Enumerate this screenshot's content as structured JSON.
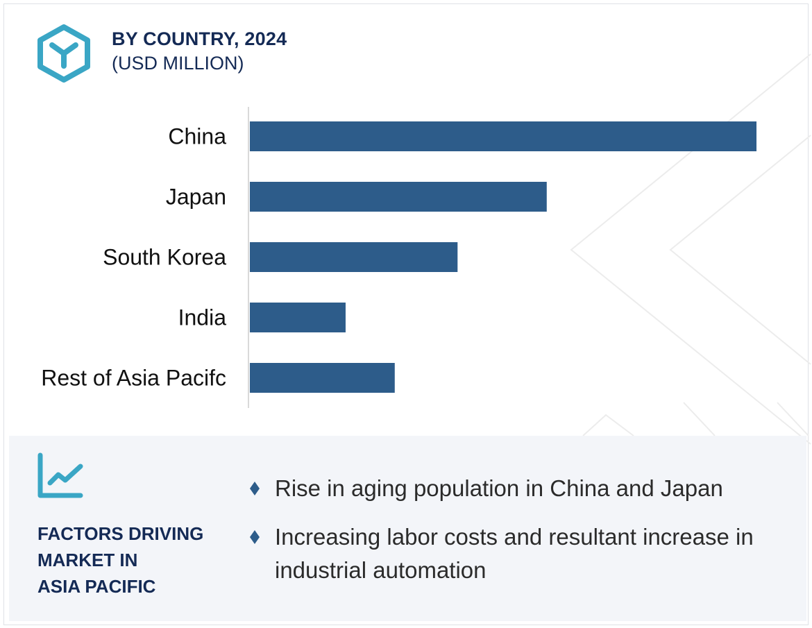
{
  "header": {
    "logo_icon": "hexagon-cube-icon",
    "title": "BY COUNTRY, 2024",
    "subtitle": "(USD MILLION)"
  },
  "colors": {
    "bar": "#2d5c8a",
    "accent": "#3aa6c5",
    "heading": "#142a55",
    "panel_bg": "#f3f5f9"
  },
  "chart_data": {
    "type": "bar",
    "orientation": "horizontal",
    "title": "BY COUNTRY, 2024",
    "subtitle": "(USD MILLION)",
    "xlabel": "",
    "ylabel": "",
    "categories": [
      "China",
      "Japan",
      "South Korea",
      "India",
      "Rest of Asia Pacifc"
    ],
    "values": [
      100,
      58.6,
      41,
      18.9,
      28.6
    ],
    "value_note": "relative bar lengths (China = 100); no axis ticks or data labels shown",
    "xlim": [
      0,
      100
    ],
    "grid": false,
    "legend": "none"
  },
  "factors": {
    "icon": "trend-chart-icon",
    "title_lines": [
      "FACTORS DRIVING",
      "MARKET IN",
      "ASIA PACIFIC"
    ],
    "bullet_icon": "diamond-icon",
    "items": [
      "Rise in aging population in China and Japan",
      "Increasing labor costs and resultant increase in industrial automation"
    ]
  }
}
